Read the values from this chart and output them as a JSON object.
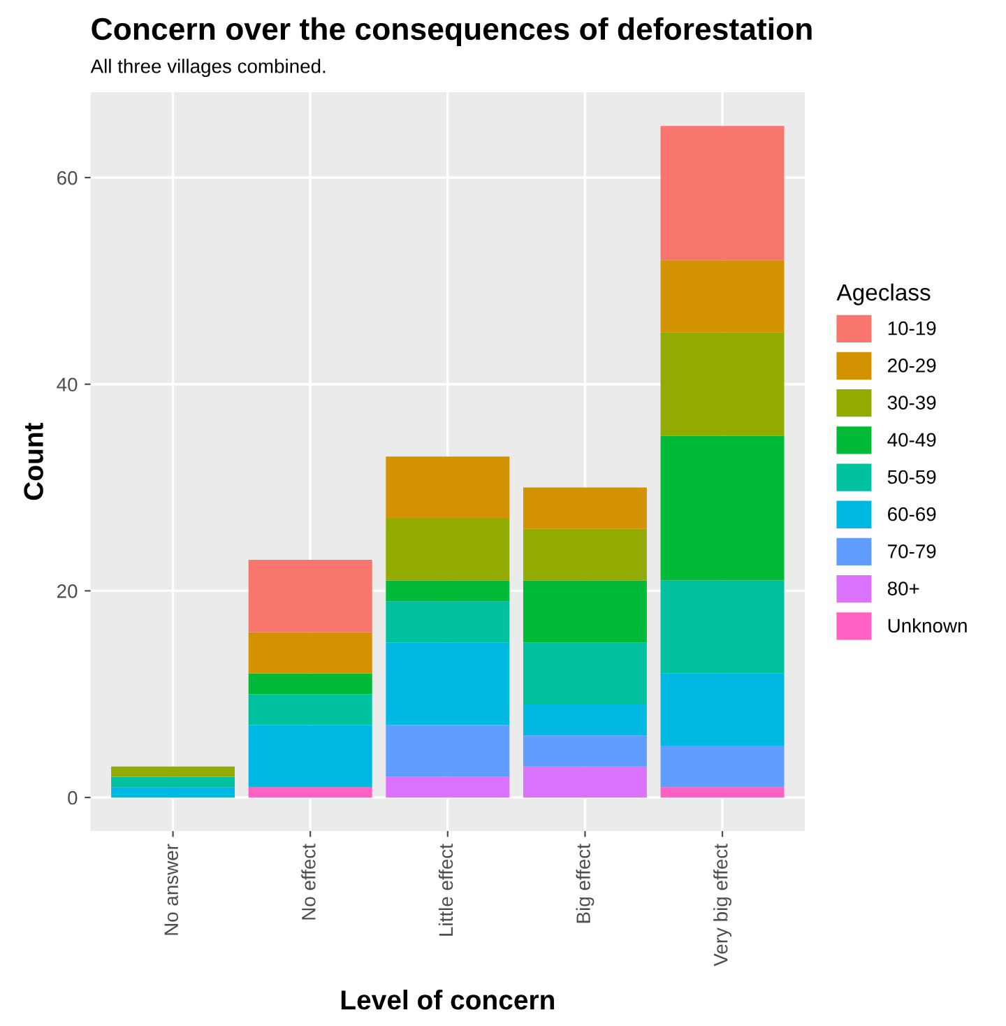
{
  "chart_data": {
    "type": "bar",
    "stacked": true,
    "title": "Concern over the consequences of deforestation",
    "subtitle": "All three villages combined.",
    "xlabel": "Level of concern",
    "ylabel": "Count",
    "legend_title": "Ageclass",
    "categories": [
      "No answer",
      "No effect",
      "Little effect",
      "Big effect",
      "Very big effect"
    ],
    "series": [
      {
        "name": "Unknown",
        "color": "#ff61c3",
        "values": [
          0,
          1,
          0,
          0,
          1
        ]
      },
      {
        "name": "80+",
        "color": "#db72fb",
        "values": [
          0,
          0,
          2,
          3,
          0
        ]
      },
      {
        "name": "70-79",
        "color": "#619cff",
        "values": [
          0,
          0,
          5,
          3,
          4
        ]
      },
      {
        "name": "60-69",
        "color": "#00b9e3",
        "values": [
          1,
          6,
          8,
          3,
          7
        ]
      },
      {
        "name": "50-59",
        "color": "#00c19f",
        "values": [
          1,
          3,
          4,
          6,
          9
        ]
      },
      {
        "name": "40-49",
        "color": "#00ba38",
        "values": [
          0,
          2,
          2,
          6,
          14
        ]
      },
      {
        "name": "30-39",
        "color": "#93aa00",
        "values": [
          1,
          0,
          6,
          5,
          10
        ]
      },
      {
        "name": "20-29",
        "color": "#d39200",
        "values": [
          0,
          4,
          6,
          4,
          7
        ]
      },
      {
        "name": "10-19",
        "color": "#f8766d",
        "values": [
          0,
          7,
          0,
          0,
          13
        ]
      }
    ],
    "ylim": [
      -3.25,
      68.25
    ],
    "yticks": [
      0,
      20,
      40,
      60
    ],
    "grid": true,
    "legend": "right"
  }
}
